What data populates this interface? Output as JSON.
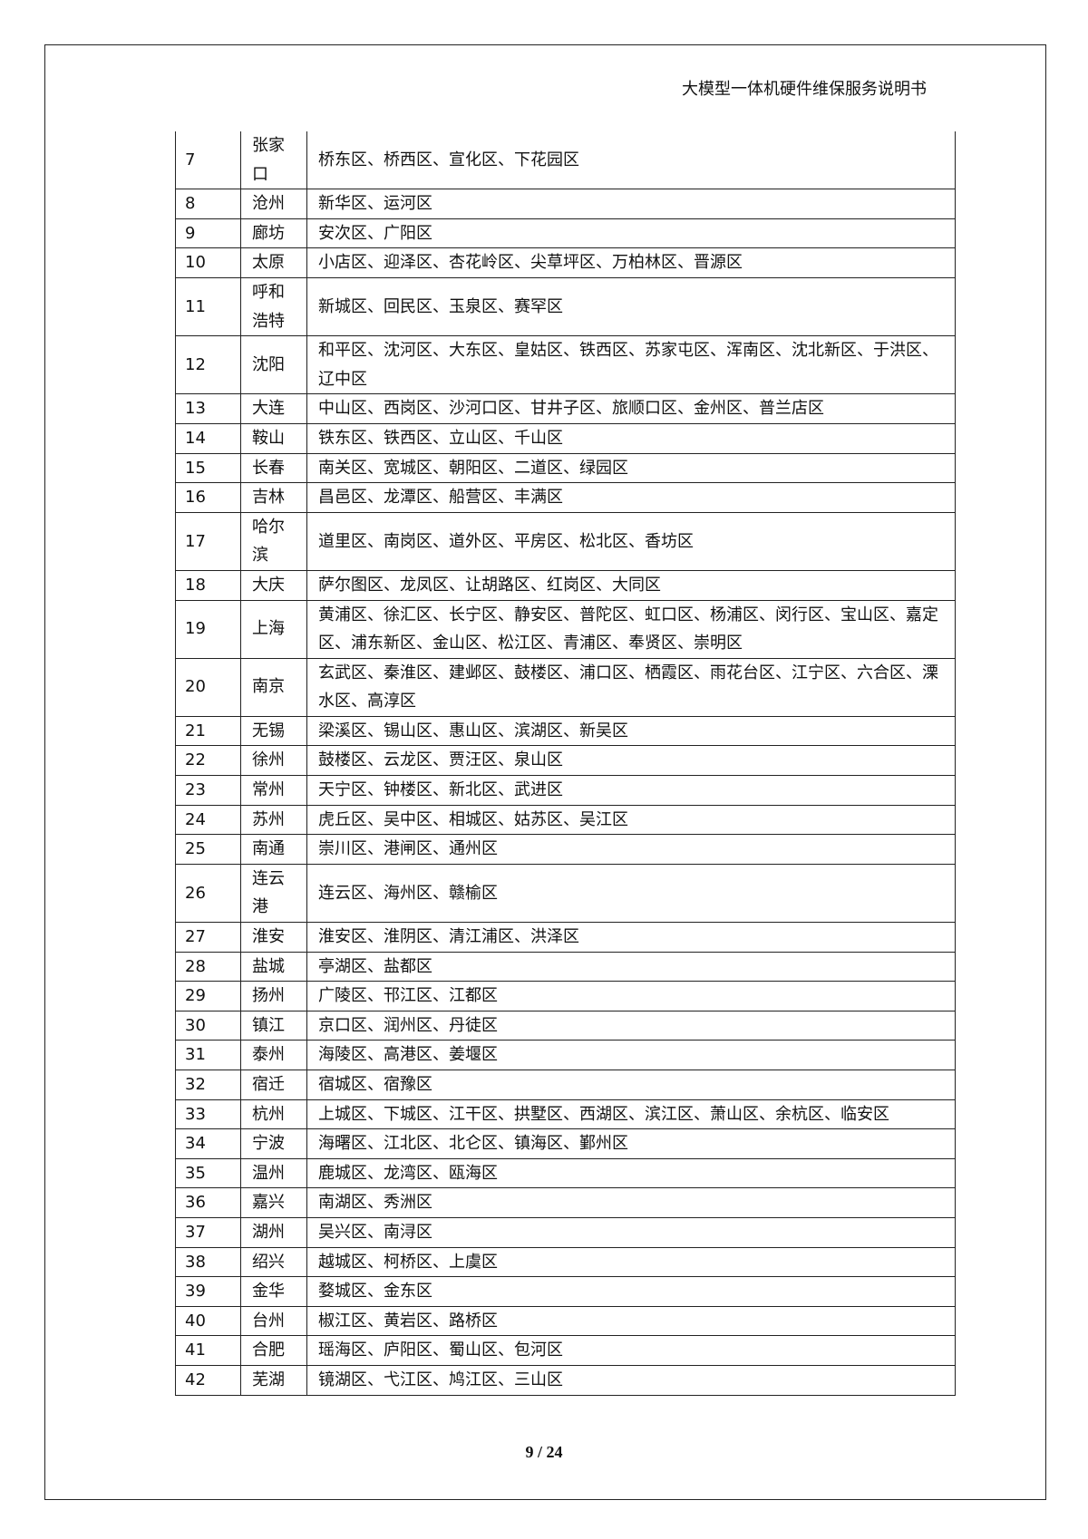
{
  "header": {
    "title": "大模型一体机硬件维保服务说明书"
  },
  "table": {
    "rows": [
      [
        "7",
        "张家口",
        "桥东区、桥西区、宣化区、下花园区"
      ],
      [
        "8",
        "沧州",
        "新华区、运河区"
      ],
      [
        "9",
        "廊坊",
        "安次区、广阳区"
      ],
      [
        "10",
        "太原",
        "小店区、迎泽区、杏花岭区、尖草坪区、万柏林区、晋源区"
      ],
      [
        "11",
        "呼和浩特",
        "新城区、回民区、玉泉区、赛罕区"
      ],
      [
        "12",
        "沈阳",
        "和平区、沈河区、大东区、皇姑区、铁西区、苏家屯区、浑南区、沈北新区、于洪区、辽中区"
      ],
      [
        "13",
        "大连",
        "中山区、西岗区、沙河口区、甘井子区、旅顺口区、金州区、普兰店区"
      ],
      [
        "14",
        "鞍山",
        "铁东区、铁西区、立山区、千山区"
      ],
      [
        "15",
        "长春",
        "南关区、宽城区、朝阳区、二道区、绿园区"
      ],
      [
        "16",
        "吉林",
        "昌邑区、龙潭区、船营区、丰满区"
      ],
      [
        "17",
        "哈尔滨",
        "道里区、南岗区、道外区、平房区、松北区、香坊区"
      ],
      [
        "18",
        "大庆",
        "萨尔图区、龙凤区、让胡路区、红岗区、大同区"
      ],
      [
        "19",
        "上海",
        "黄浦区、徐汇区、长宁区、静安区、普陀区、虹口区、杨浦区、闵行区、宝山区、嘉定区、浦东新区、金山区、松江区、青浦区、奉贤区、崇明区"
      ],
      [
        "20",
        "南京",
        "玄武区、秦淮区、建邺区、鼓楼区、浦口区、栖霞区、雨花台区、江宁区、六合区、溧水区、高淳区"
      ],
      [
        "21",
        "无锡",
        "梁溪区、锡山区、惠山区、滨湖区、新吴区"
      ],
      [
        "22",
        "徐州",
        "鼓楼区、云龙区、贾汪区、泉山区"
      ],
      [
        "23",
        "常州",
        "天宁区、钟楼区、新北区、武进区"
      ],
      [
        "24",
        "苏州",
        "虎丘区、吴中区、相城区、姑苏区、吴江区"
      ],
      [
        "25",
        "南通",
        "崇川区、港闸区、通州区"
      ],
      [
        "26",
        "连云港",
        "连云区、海州区、赣榆区"
      ],
      [
        "27",
        "淮安",
        "淮安区、淮阴区、清江浦区、洪泽区"
      ],
      [
        "28",
        "盐城",
        "亭湖区、盐都区"
      ],
      [
        "29",
        "扬州",
        "广陵区、邗江区、江都区"
      ],
      [
        "30",
        "镇江",
        "京口区、润州区、丹徒区"
      ],
      [
        "31",
        "泰州",
        "海陵区、高港区、姜堰区"
      ],
      [
        "32",
        "宿迁",
        "宿城区、宿豫区"
      ],
      [
        "33",
        "杭州",
        "上城区、下城区、江干区、拱墅区、西湖区、滨江区、萧山区、余杭区、临安区"
      ],
      [
        "34",
        "宁波",
        "海曙区、江北区、北仑区、镇海区、鄞州区"
      ],
      [
        "35",
        "温州",
        "鹿城区、龙湾区、瓯海区"
      ],
      [
        "36",
        "嘉兴",
        "南湖区、秀洲区"
      ],
      [
        "37",
        "湖州",
        "吴兴区、南浔区"
      ],
      [
        "38",
        "绍兴",
        "越城区、柯桥区、上虞区"
      ],
      [
        "39",
        "金华",
        "婺城区、金东区"
      ],
      [
        "40",
        "台州",
        "椒江区、黄岩区、路桥区"
      ],
      [
        "41",
        "合肥",
        "瑶海区、庐阳区、蜀山区、包河区"
      ],
      [
        "42",
        "芜湖",
        "镜湖区、弋江区、鸠江区、三山区"
      ]
    ]
  },
  "footer": {
    "page": "9 / 24"
  }
}
